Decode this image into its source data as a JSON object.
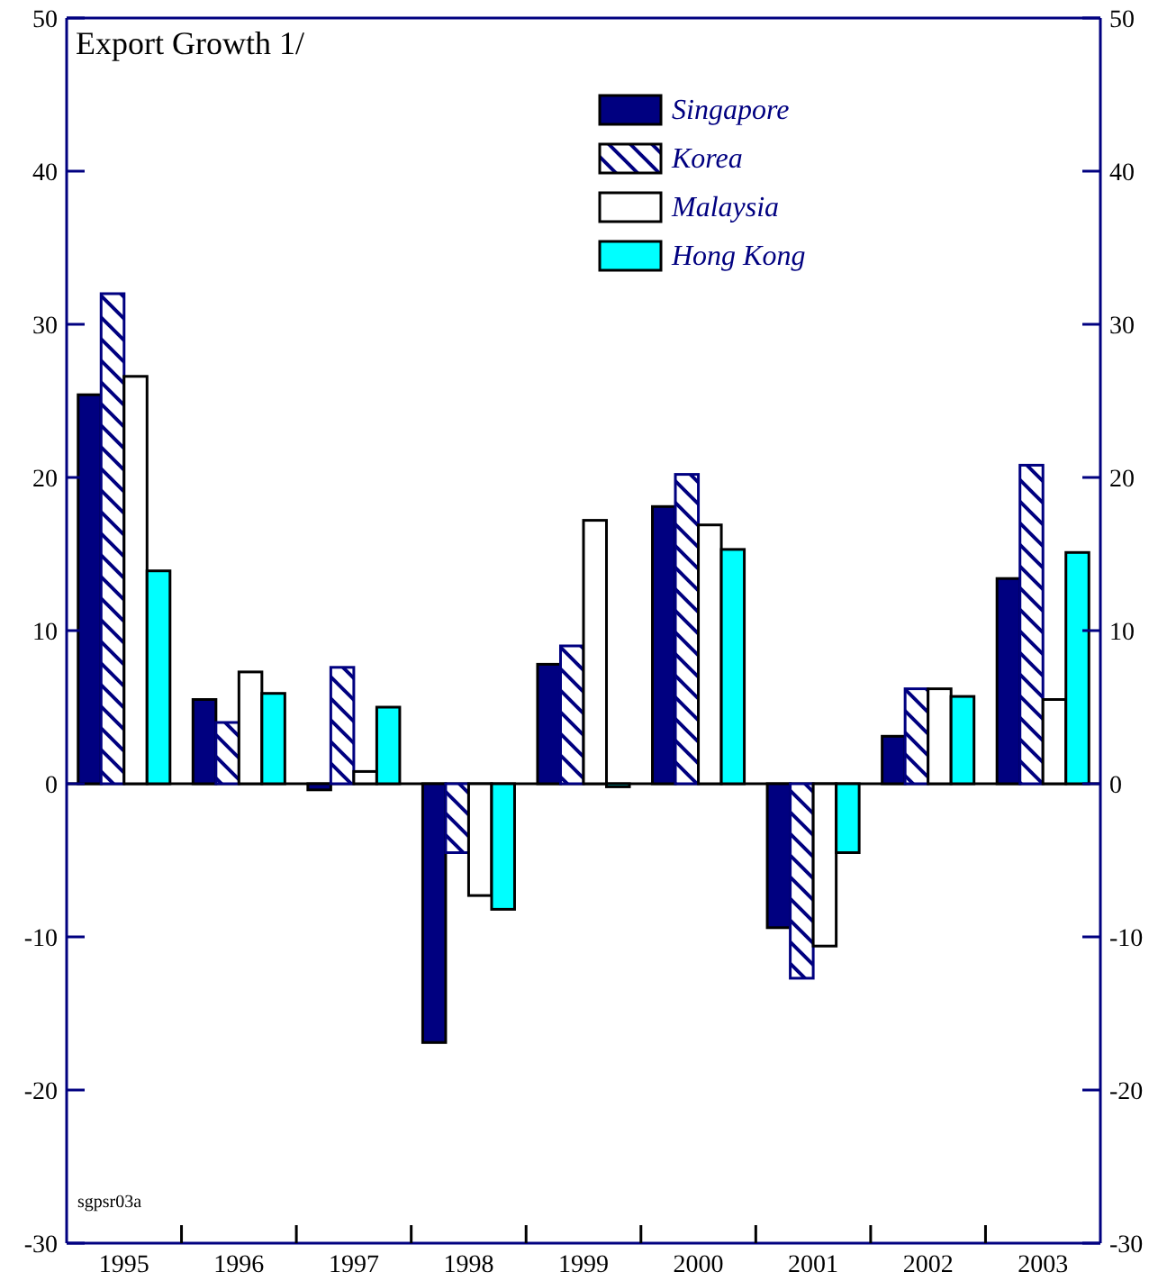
{
  "chart_data": {
    "type": "bar",
    "title": "Export Growth 1/",
    "categories": [
      "1995",
      "1996",
      "1997",
      "1998",
      "1999",
      "2000",
      "2001",
      "2002",
      "2003"
    ],
    "series": [
      {
        "name": "Singapore",
        "color": "#000080",
        "values": [
          25.4,
          5.5,
          -0.4,
          -16.9,
          7.8,
          18.1,
          -9.4,
          3.1,
          13.4
        ]
      },
      {
        "name": "Korea",
        "color": "#000080",
        "values": [
          32.0,
          4.0,
          7.6,
          -4.5,
          9.0,
          20.2,
          -12.7,
          6.2,
          20.8
        ]
      },
      {
        "name": "Malaysia",
        "color": "#ffffff",
        "values": [
          26.6,
          7.3,
          0.8,
          -7.3,
          17.2,
          16.9,
          -10.6,
          6.2,
          5.5
        ]
      },
      {
        "name": "Hong Kong",
        "color": "#00ffff",
        "values": [
          13.9,
          5.9,
          5.0,
          -8.2,
          -0.2,
          15.3,
          -4.5,
          5.7,
          15.1
        ]
      }
    ],
    "ylim": [
      -30,
      50
    ],
    "yticks": [
      -30,
      -20,
      -10,
      0,
      10,
      20,
      30,
      40,
      50
    ],
    "y2lim": [
      -30,
      50
    ],
    "y2ticks": [
      -30,
      -20,
      -10,
      0,
      10,
      20,
      30,
      40,
      50
    ],
    "legend": "top right",
    "annotations": [
      "sgpsr03a"
    ]
  }
}
